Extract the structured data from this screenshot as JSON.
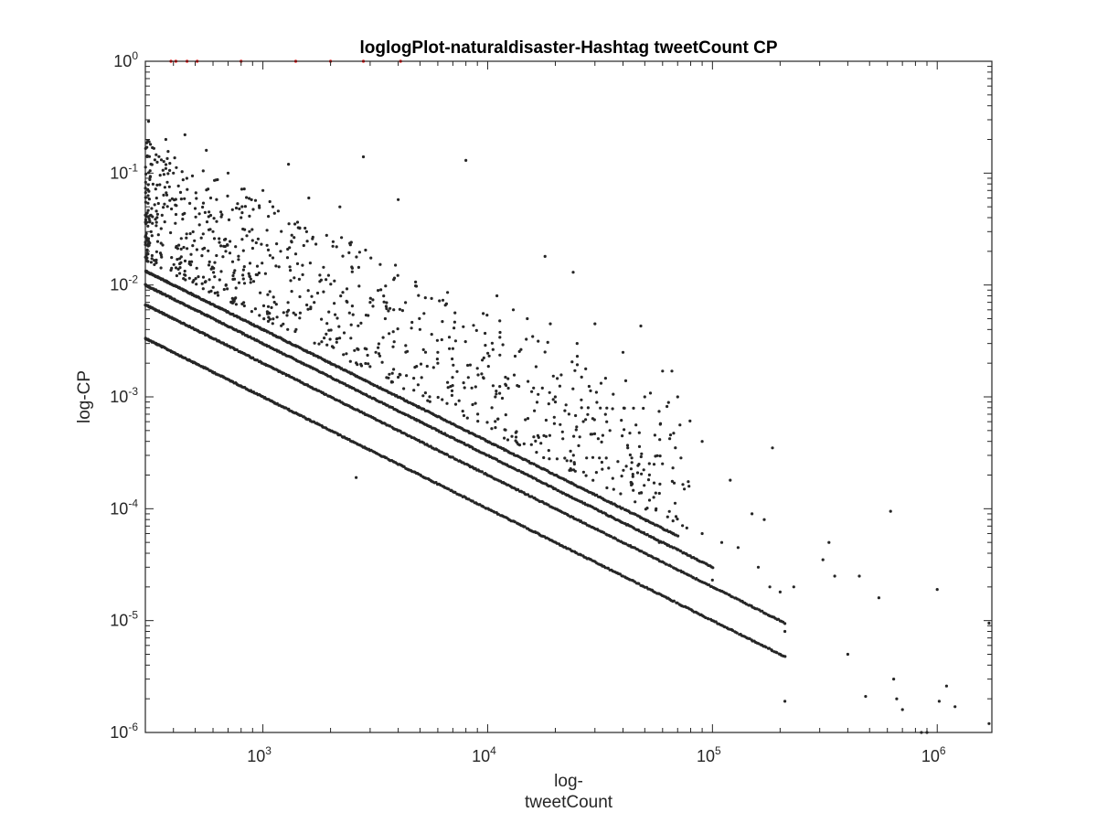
{
  "chart_data": {
    "type": "scatter",
    "title": "loglogPlot-naturaldisaster-Hashtag tweetCount CP",
    "xlabel_line1": "log-",
    "xlabel_line2": "tweetCount",
    "ylabel": "log-CP",
    "xscale": "log",
    "yscale": "log",
    "xlim": [
      300,
      1750000
    ],
    "ylim": [
      1e-06,
      1
    ],
    "grid": false,
    "box": true,
    "x_ticks": [
      {
        "value": 1000,
        "base": "10",
        "exp": "3"
      },
      {
        "value": 10000,
        "base": "10",
        "exp": "4"
      },
      {
        "value": 100000,
        "base": "10",
        "exp": "5"
      },
      {
        "value": 1000000,
        "base": "10",
        "exp": "6"
      }
    ],
    "y_ticks": [
      {
        "value": 1,
        "base": "10",
        "exp": "0"
      },
      {
        "value": 0.1,
        "base": "10",
        "exp": "-1"
      },
      {
        "value": 0.01,
        "base": "10",
        "exp": "-2"
      },
      {
        "value": 0.001,
        "base": "10",
        "exp": "-3"
      },
      {
        "value": 0.0001,
        "base": "10",
        "exp": "-4"
      },
      {
        "value": 1e-05,
        "base": "10",
        "exp": "-5"
      },
      {
        "value": 1e-06,
        "base": "10",
        "exp": "-6"
      }
    ],
    "series": [
      {
        "color": "#262626",
        "description_bands": "dense power-law bands y = k/x, k ≈ 1, 2, 3, 4 (plus sparse scatter)",
        "bands": [
          {
            "k": 1,
            "x_range": [
              300,
              210000
            ]
          },
          {
            "k": 2,
            "x_range": [
              300,
              210000
            ]
          },
          {
            "k": 3,
            "x_range": [
              300,
              100000
            ]
          },
          {
            "k": 4,
            "x_range": [
              300,
              70000
            ]
          }
        ],
        "points": [
          [
            310,
            0.29
          ],
          [
            370,
            0.2
          ],
          [
            450,
            0.22
          ],
          [
            560,
            0.16
          ],
          [
            370,
            0.11
          ],
          [
            400,
            0.1
          ],
          [
            700,
            0.1
          ],
          [
            1300,
            0.12
          ],
          [
            2800,
            0.14
          ],
          [
            8000,
            0.13
          ],
          [
            1000,
            0.07
          ],
          [
            2200,
            0.05
          ],
          [
            4000,
            0.058
          ],
          [
            1600,
            0.06
          ],
          [
            18000,
            0.018
          ],
          [
            24000,
            0.013
          ],
          [
            48000,
            0.0043
          ],
          [
            15000,
            0.005
          ],
          [
            19000,
            0.0045
          ],
          [
            11000,
            0.008
          ],
          [
            13000,
            0.006
          ],
          [
            30000,
            0.0045
          ],
          [
            25000,
            0.003
          ],
          [
            40000,
            0.0025
          ],
          [
            60000,
            0.0017
          ],
          [
            66000,
            0.0017
          ],
          [
            50000,
            0.001
          ],
          [
            70000,
            0.001
          ],
          [
            90000,
            0.0004
          ],
          [
            120000,
            0.00018
          ],
          [
            185000,
            0.00035
          ],
          [
            150000,
            9e-05
          ],
          [
            170000,
            8e-05
          ],
          [
            110000,
            5e-05
          ],
          [
            130000,
            4.5e-05
          ],
          [
            160000,
            3e-05
          ],
          [
            180000,
            2e-05
          ],
          [
            200000,
            1.8e-05
          ],
          [
            230000,
            2e-05
          ],
          [
            210000,
            8e-06
          ],
          [
            330000,
            5e-05
          ],
          [
            310000,
            3.5e-05
          ],
          [
            350000,
            2.5e-05
          ],
          [
            400000,
            5e-06
          ],
          [
            450000,
            2.5e-05
          ],
          [
            550000,
            1.6e-05
          ],
          [
            620000,
            9.5e-05
          ],
          [
            640000,
            3e-06
          ],
          [
            660000,
            2e-06
          ],
          [
            700000,
            1.6e-06
          ],
          [
            900000,
            1e-06
          ],
          [
            850000,
            1e-06
          ],
          [
            1000000,
            1.9e-05
          ],
          [
            1020000,
            1.9e-06
          ],
          [
            1100000,
            2.6e-06
          ],
          [
            1200000,
            1.7e-06
          ],
          [
            1700000,
            1.2e-06
          ],
          [
            1700000,
            9.5e-06
          ],
          [
            480000,
            2.1e-06
          ],
          [
            210000,
            1.9e-06
          ],
          [
            2000,
            0.002
          ],
          [
            4000,
            0.0015
          ],
          [
            6000,
            0.002
          ],
          [
            7000,
            0.0027
          ],
          [
            9000,
            0.0018
          ],
          [
            3000,
            0.007
          ],
          [
            5000,
            0.004
          ],
          [
            3500,
            0.005
          ],
          [
            2500,
            0.0065
          ],
          [
            1200,
            0.02
          ],
          [
            600,
            0.03
          ],
          [
            900,
            0.025
          ],
          [
            1500,
            0.015
          ],
          [
            800,
            0.04
          ],
          [
            650,
            0.045
          ],
          [
            2600,
            0.00019
          ],
          [
            6000,
            0.0025
          ],
          [
            8500,
            0.0012
          ],
          [
            12000,
            0.0015
          ],
          [
            16000,
            0.0012
          ],
          [
            20000,
            0.0009
          ],
          [
            23000,
            0.0007
          ],
          [
            28000,
            0.0008
          ],
          [
            35000,
            0.0005
          ],
          [
            42000,
            0.00035
          ],
          [
            55000,
            0.00025
          ],
          [
            75000,
            0.00015
          ],
          [
            58000,
            5e-05
          ],
          [
            90000,
            6e-05
          ],
          [
            100000,
            2.3e-05
          ]
        ]
      },
      {
        "color": "#ff0000",
        "points": [
          [
            390,
            1
          ],
          [
            410,
            1
          ],
          [
            460,
            1
          ],
          [
            510,
            1
          ],
          [
            800,
            1
          ],
          [
            1400,
            1
          ],
          [
            2000,
            1
          ],
          [
            2800,
            1
          ],
          [
            4100,
            1
          ]
        ]
      }
    ]
  }
}
